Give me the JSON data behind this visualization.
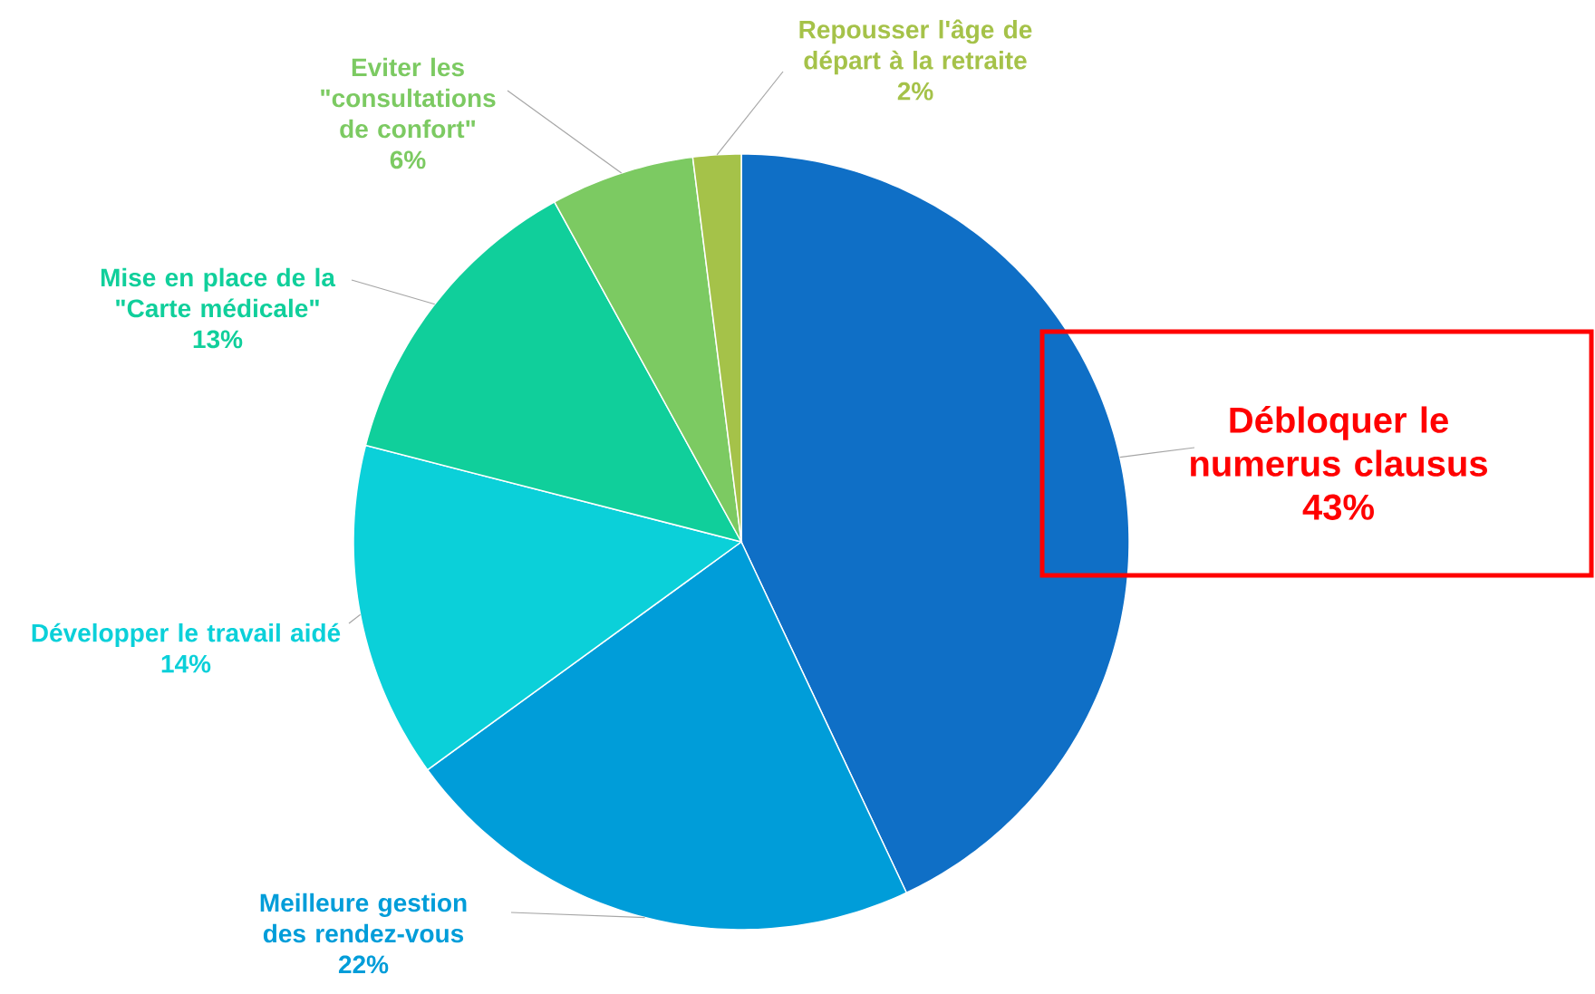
{
  "chart_data": {
    "type": "pie",
    "categories": [
      "Débloquer le numerus clausus",
      "Meilleure gestion des rendez-vous",
      "Développer le travail aidé",
      "Mise en place de la \"Carte médicale\"",
      "Eviter les \"consultations de confort\"",
      "Repousser l'âge de départ à la retraite"
    ],
    "values": [
      43,
      22,
      14,
      13,
      6,
      2
    ],
    "value_labels": [
      "43%",
      "22%",
      "14%",
      "13%",
      "6%",
      "2%"
    ],
    "colors": [
      "#0f6fc6",
      "#009dd9",
      "#0bd0d9",
      "#10cf9b",
      "#7cca62",
      "#a5c249"
    ]
  }
}
